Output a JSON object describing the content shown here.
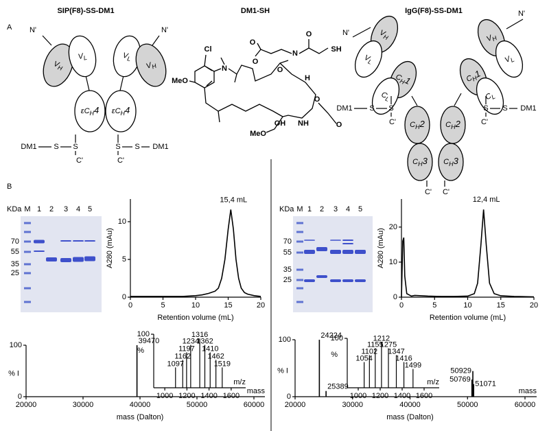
{
  "panels": [
    "A",
    "B"
  ],
  "diagrams": {
    "sip": {
      "title": "SIP(F8)-SS-DM1",
      "n_terms": [
        "N'",
        "N'"
      ],
      "domains": [
        {
          "main": "V",
          "sub": "H"
        },
        {
          "main": "V",
          "sub": "L"
        },
        {
          "main": "V",
          "sub": "L"
        },
        {
          "main": "V",
          "sub": "H"
        },
        {
          "main": "εC",
          "sub": "H",
          "tail": "4"
        },
        {
          "main": "εC",
          "sub": "H",
          "tail": "4"
        }
      ],
      "linkers": [
        "DM1",
        "S",
        "S"
      ],
      "c_terms": [
        "C'",
        "C'"
      ]
    },
    "igg": {
      "title": "IgG(F8)-SS-DM1",
      "n_terms": [
        "N'",
        "N'"
      ],
      "domains": [
        {
          "main": "V",
          "sub": "H"
        },
        {
          "main": "V",
          "sub": "L"
        },
        {
          "main": "C",
          "sub": "H",
          "tail": "1"
        },
        {
          "main": "C",
          "sub": "L"
        },
        {
          "main": "V",
          "sub": "H"
        },
        {
          "main": "V",
          "sub": "L"
        },
        {
          "main": "C",
          "sub": "H",
          "tail": "1"
        },
        {
          "main": "C",
          "sub": "L"
        },
        {
          "main": "C",
          "sub": "H",
          "tail": "2"
        },
        {
          "main": "C",
          "sub": "H",
          "tail": "2"
        },
        {
          "main": "C",
          "sub": "H",
          "tail": "3"
        },
        {
          "main": "C",
          "sub": "H",
          "tail": "3"
        }
      ],
      "linkers": [
        "DM1",
        "S",
        "S"
      ],
      "c_terms": [
        "C'",
        "C'",
        "C'",
        "C'"
      ]
    }
  },
  "dm1": {
    "title": "DM1-SH",
    "atoms": [
      "Cl",
      "N",
      "MeO",
      "O",
      "O",
      "O",
      "N",
      "O",
      "SH",
      "H",
      "O",
      "OH",
      "NH",
      "O",
      "MeO"
    ]
  },
  "gels": [
    {
      "kda_label": "KDa",
      "marker_label": "M",
      "lanes": [
        "1",
        "2",
        "3",
        "4",
        "5"
      ],
      "markers": [
        70,
        55,
        35,
        25
      ]
    },
    {
      "kda_label": "KDa",
      "marker_label": "M",
      "lanes": [
        "1",
        "2",
        "3",
        "4",
        "5"
      ],
      "markers": [
        70,
        55,
        35,
        25
      ]
    }
  ],
  "chart_data": [
    {
      "type": "line",
      "x_label": "Retention volume (mL)",
      "y_label": "A280 (mAu)",
      "annotation": "15,4 mL",
      "color": "#000000",
      "xlim": [
        0,
        20
      ],
      "ylim": [
        0,
        13
      ],
      "xticks": [
        0,
        5,
        10,
        15,
        20
      ],
      "yticks": [
        0,
        5,
        10
      ],
      "x": [
        0,
        2,
        4,
        6,
        8,
        10,
        11,
        12,
        13,
        13.5,
        14,
        14.5,
        15,
        15.4,
        15.8,
        16.2,
        16.6,
        17,
        17.5,
        18,
        19,
        20
      ],
      "values": [
        0.1,
        0.1,
        0.1,
        0.1,
        0.1,
        0.2,
        0.3,
        0.5,
        0.8,
        1.2,
        2.5,
        5,
        9,
        11.6,
        9,
        5,
        2.5,
        1.2,
        0.6,
        0.4,
        0.2,
        0.1
      ]
    },
    {
      "type": "line",
      "x_label": "Retention volume (mL)",
      "y_label": "A280 (mAu)",
      "annotation": "12,4 mL",
      "color": "#000000",
      "xlim": [
        0,
        20
      ],
      "ylim": [
        0,
        28
      ],
      "xticks": [
        0,
        5,
        10,
        15,
        20
      ],
      "yticks": [
        0,
        10,
        20
      ],
      "x": [
        0,
        0.2,
        0.35,
        0.5,
        0.8,
        1.5,
        2,
        4,
        6,
        8,
        10,
        11,
        11.5,
        12,
        12.4,
        12.8,
        13.3,
        14,
        15,
        17,
        20
      ],
      "values": [
        0,
        16,
        17,
        6,
        1,
        0.3,
        0.5,
        0.3,
        0.2,
        0.2,
        0.3,
        1,
        4,
        15,
        25,
        15,
        4,
        1,
        0.4,
        0.2,
        0.1
      ]
    },
    {
      "type": "stick",
      "x_label": "mass (Dalton)",
      "x_unit_label": "mass",
      "y_label": "% I",
      "color": "#000000",
      "xlim": [
        20000,
        60000
      ],
      "ylim": [
        0,
        100
      ],
      "xticks": [
        20000,
        30000,
        40000,
        50000,
        60000
      ],
      "yticks": [
        0,
        100
      ],
      "x": [
        39470
      ],
      "values": [
        100
      ]
    },
    {
      "type": "stick",
      "x_unit_label": "m/z",
      "y_label": "%",
      "color": "#000000",
      "xlim": [
        900,
        1700
      ],
      "ylim": [
        0,
        100
      ],
      "xticks": [
        1000,
        1200,
        1400,
        1600
      ],
      "yticks": [
        100
      ],
      "x": [
        1097,
        1162,
        1197,
        1234,
        1316,
        1362,
        1410,
        1462,
        1519
      ],
      "values": [
        38,
        52,
        66,
        80,
        92,
        80,
        66,
        52,
        38
      ]
    },
    {
      "type": "stick",
      "x_label": "mass (Dalton)",
      "x_unit_label": "mass",
      "y_label": "% I",
      "color": "#000000",
      "xlim": [
        20000,
        60000
      ],
      "ylim": [
        0,
        100
      ],
      "xticks": [
        20000,
        30000,
        40000,
        50000,
        60000
      ],
      "yticks": [
        0,
        100
      ],
      "x": [
        24224,
        25389,
        50769,
        50929,
        51071
      ],
      "values": [
        100,
        10,
        30,
        45,
        22
      ]
    },
    {
      "type": "stick",
      "x_unit_label": "m/z",
      "y_label": "%",
      "color": "#000000",
      "xlim": [
        900,
        1700
      ],
      "ylim": [
        0,
        100
      ],
      "xticks": [
        1000,
        1200,
        1400,
        1600
      ],
      "yticks": [
        100
      ],
      "x": [
        1054,
        1102,
        1155,
        1212,
        1275,
        1347,
        1416,
        1499
      ],
      "values": [
        52,
        66,
        80,
        92,
        80,
        66,
        52,
        38
      ]
    }
  ]
}
